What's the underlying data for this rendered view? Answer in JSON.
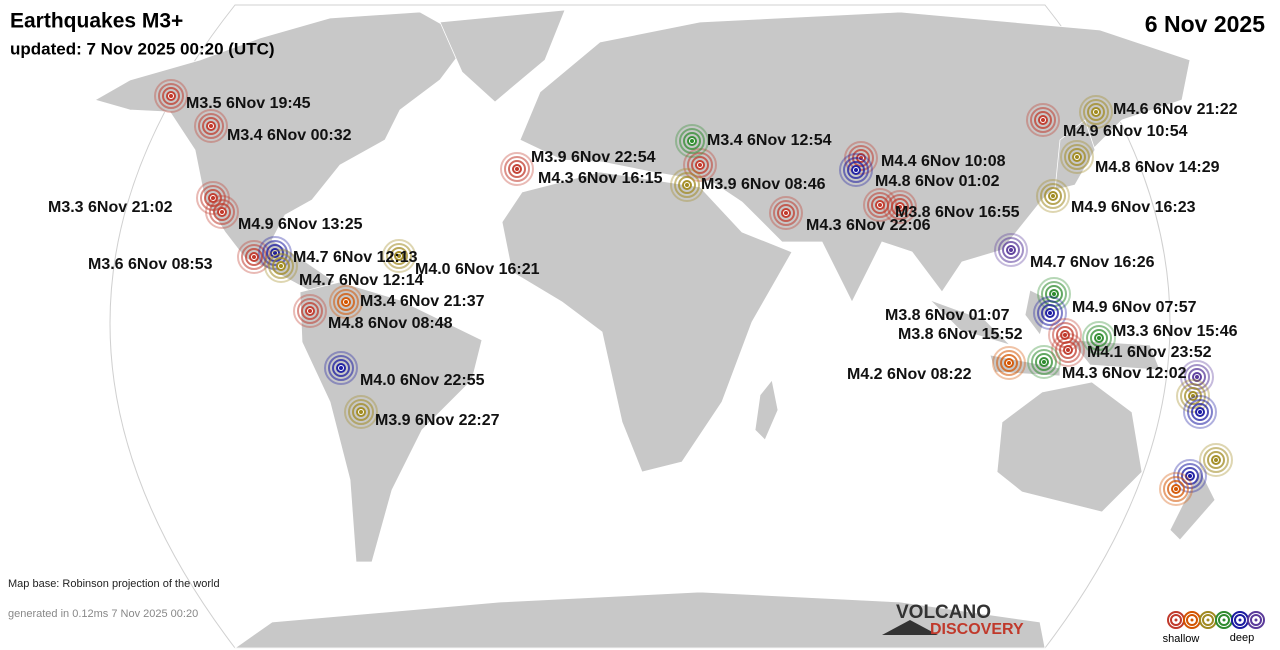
{
  "header": {
    "title": "Earthquakes M3+",
    "updated": "updated:  7 Nov 2025 00:20 (UTC)",
    "date": "6 Nov 2025"
  },
  "quakes": [
    {
      "label": "M3.5  6Nov 19:45",
      "color": "#c0392b"
    },
    {
      "label": "M3.4  6Nov 00:32",
      "color": "#c0392b"
    },
    {
      "label": "M3.3  6Nov 21:02",
      "color": "#c0392b"
    },
    {
      "label": "M4.9  6Nov 13:25",
      "color": "#c0392b"
    },
    {
      "label": "M3.6  6Nov 08:53",
      "color": "#c0392b"
    },
    {
      "label": "M4.7  6Nov 12:13",
      "color": "#1a1aa0"
    },
    {
      "label": "M4.7  6Nov 12:14",
      "color": "#a08a20"
    },
    {
      "label": "M4.0  6Nov 16:21",
      "color": "#a08a20"
    },
    {
      "label": "M3.4  6Nov 21:37",
      "color": "#d35400"
    },
    {
      "label": "M4.8  6Nov 08:48",
      "color": "#c0392b"
    },
    {
      "label": "M4.0  6Nov 22:55",
      "color": "#1a1aa0"
    },
    {
      "label": "M3.9  6Nov 22:27",
      "color": "#a08a20"
    },
    {
      "label": "M3.9  6Nov 22:54",
      "color": "#c0392b"
    },
    {
      "label": "M4.3  6Nov 16:15",
      "color": "#c0392b"
    },
    {
      "label": "M3.4  6Nov 12:54",
      "color": "#2e8b2e"
    },
    {
      "label": "M3.9  6Nov 08:46",
      "color": "#a08a20"
    },
    {
      "label": "M4.4  6Nov 10:08",
      "color": "#c0392b"
    },
    {
      "label": "M4.8  6Nov 01:02",
      "color": "#1a1aa0"
    },
    {
      "label": "M4.3  6Nov 22:06",
      "color": "#c0392b"
    },
    {
      "label": "M3.8  6Nov 16:55",
      "color": "#c0392b"
    },
    {
      "label": "M4.6  6Nov 21:22",
      "color": "#a08a20"
    },
    {
      "label": "M4.9  6Nov 10:54",
      "color": "#c0392b"
    },
    {
      "label": "M4.8  6Nov 14:29",
      "color": "#a08a20"
    },
    {
      "label": "M4.9  6Nov 16:23",
      "color": "#a08a20"
    },
    {
      "label": "M4.7  6Nov 16:26",
      "color": "#5a3a9a"
    },
    {
      "label": "M4.9  6Nov 07:57",
      "color": "#2e8b2e"
    },
    {
      "label": "M3.8  6Nov 01:07",
      "color": "#1a1aa0"
    },
    {
      "label": "M3.8  6Nov 15:52",
      "color": "#c0392b"
    },
    {
      "label": "M3.3  6Nov 15:46",
      "color": "#2e8b2e"
    },
    {
      "label": "M4.1  6Nov 23:52",
      "color": "#c0392b"
    },
    {
      "label": "M4.2  6Nov 08:22",
      "color": "#d35400"
    },
    {
      "label": "M4.3  6Nov 12:02",
      "color": "#2e8b2e"
    }
  ],
  "footer": {
    "map_base": "Map base: Robinson projection of the world",
    "generated": "generated in 0.12ms  7 Nov 2025 00:20"
  },
  "logo": {
    "line1": "VOLCANO",
    "line2": "DISCOVERY"
  },
  "legend": {
    "shallow": "shallow",
    "deep": "deep"
  }
}
